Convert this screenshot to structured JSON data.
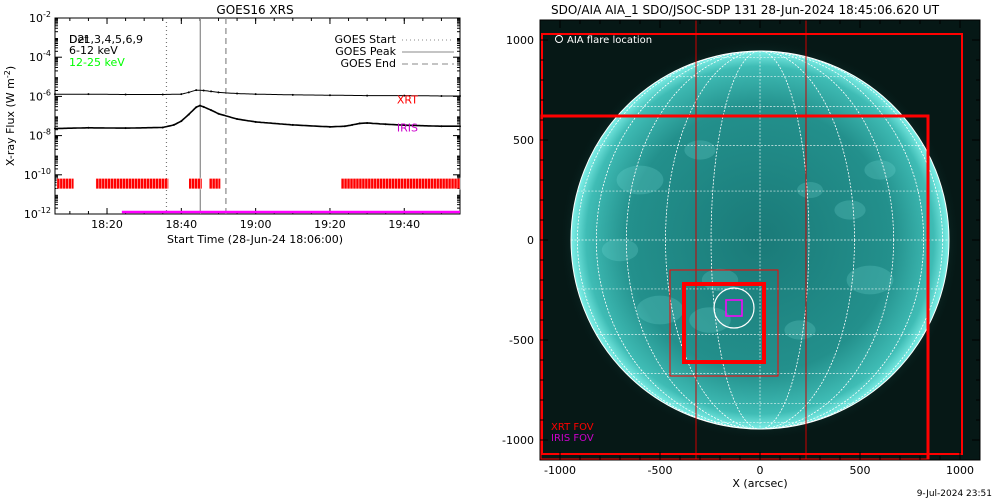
{
  "stamp": "9-Jul-2024 23:51",
  "chart_data": [
    {
      "type": "line",
      "title": "GOES16 XRS",
      "xlabel": "Start Time (28-Jun-24 18:06:00)",
      "ylabel": "X-ray Flux (W m",
      "ylabel_sup": "-2",
      "ylabel_close": ")",
      "y_log_scale": true,
      "xlim_min": [
        6,
        115
      ],
      "ylim_exp": [
        -12,
        -2
      ],
      "x_ticks": [
        {
          "min": 20,
          "label": "18:20"
        },
        {
          "min": 40,
          "label": "18:40"
        },
        {
          "min": 60,
          "label": "19:00"
        },
        {
          "min": 80,
          "label": "19:20"
        },
        {
          "min": 100,
          "label": "19:40"
        }
      ],
      "y_ticks": [
        {
          "exp": -12,
          "base": "10",
          "sup": "-12"
        },
        {
          "exp": -10,
          "base": "10",
          "sup": "-10"
        },
        {
          "exp": -8,
          "base": "10",
          "sup": "-8"
        },
        {
          "exp": -6,
          "base": "10",
          "sup": "-6"
        },
        {
          "exp": -4,
          "base": "10",
          "sup": "-4"
        },
        {
          "exp": -2,
          "base": "10",
          "sup": "-2"
        }
      ],
      "legend_left": {
        "detector_label": "Det",
        "detector_list": "1,3,4,5,6,9",
        "overlap_label": "D2",
        "entries": [
          {
            "label": "6-12 keV",
            "color": "#ff00ff"
          },
          {
            "label": "12-25 keV",
            "color": "#00ff00"
          }
        ]
      },
      "legend_right": [
        {
          "label": "GOES Start",
          "style": "dotted"
        },
        {
          "label": "GOES Peak",
          "style": "solid"
        },
        {
          "label": "GOES End",
          "style": "dashed"
        }
      ],
      "markers": {
        "start_min": 36,
        "peak_min": 45.1,
        "end_min": 52
      },
      "series": [
        {
          "name": "",
          "color": "#000000",
          "x": [
            6,
            15,
            25,
            35,
            40,
            42,
            44,
            46,
            48,
            50,
            55,
            60,
            70,
            80,
            90,
            100,
            110,
            115
          ],
          "y": [
            1.3e-06,
            1.3e-06,
            1.25e-06,
            1.25e-06,
            1.3e-06,
            1.6e-06,
            2.1e-06,
            2e-06,
            1.8e-06,
            1.6e-06,
            1.4e-06,
            1.3e-06,
            1.2e-06,
            1.15e-06,
            1.1e-06,
            1.1e-06,
            1.05e-06,
            1.05e-06
          ]
        },
        {
          "name": "",
          "color": "#000000",
          "x": [
            6,
            15,
            25,
            35,
            38,
            40,
            42,
            44,
            45,
            46,
            48,
            50,
            55,
            60,
            70,
            80,
            84,
            86,
            88,
            90,
            95,
            100,
            110,
            115
          ],
          "y": [
            2.3e-08,
            2.5e-08,
            2.4e-08,
            2.6e-08,
            3.5e-08,
            5.5e-08,
            1.2e-07,
            2.8e-07,
            3.4e-07,
            2.9e-07,
            2e-07,
            1.3e-07,
            7e-08,
            5e-08,
            3.5e-08,
            2.8e-08,
            3e-08,
            3.5e-08,
            4.2e-08,
            4.4e-08,
            3.8e-08,
            3.4e-08,
            3e-08,
            3e-08
          ]
        }
      ],
      "annotations": [
        {
          "label": "XRT",
          "color": "#ff0000",
          "min": 98,
          "exp": -6.35
        },
        {
          "label": "IRIS",
          "color": "#cc00cc",
          "min": 98,
          "exp": -7.8
        }
      ],
      "xrt_color": "#ff0000",
      "xrt_bar_level_exp": -10.45,
      "xrt_intervals_min": [
        [
          6.5,
          11
        ],
        [
          17,
          36.5
        ],
        [
          42,
          45.5
        ],
        [
          47.5,
          50.5
        ],
        [
          83,
          115
        ]
      ],
      "iris_color": "#ff00ff",
      "iris_level_exp": -11.9,
      "iris_interval_min": [
        24,
        115
      ]
    },
    {
      "type": "image",
      "title": "SDO/AIA AIA_1 SDO/JSOC-SDP 131 28-Jun-2024 18:45:06.620 UT",
      "xlabel": "X (arcsec)",
      "ylabel": "",
      "xlim": [
        -1100,
        1100
      ],
      "ylim": [
        -1100,
        1100
      ],
      "x_ticks": [
        -1000,
        -500,
        0,
        500,
        1000
      ],
      "y_ticks": [
        -1000,
        -500,
        0,
        500,
        1000
      ],
      "legend_top": "AIA flare location",
      "legend_bottom": [
        {
          "label": "XRT FOV",
          "color": "#ff0000"
        },
        {
          "label": "IRIS FOV",
          "color": "#cc00cc"
        }
      ],
      "sun_radius_arcsec": 945,
      "flare_xy": [
        -130,
        -340
      ],
      "xrt_fov_boxes": [
        {
          "x0": -1090,
          "x1": 1010,
          "y0": -1070,
          "y1": 1030,
          "width": 2
        },
        {
          "x0": -1100,
          "x1": 840,
          "y0": -1100,
          "y1": 620,
          "width": 3
        },
        {
          "x0": -450,
          "x1": 90,
          "y0": -680,
          "y1": -150,
          "width": 1
        },
        {
          "x0": -380,
          "x1": 20,
          "y0": -610,
          "y1": -220,
          "width": 4
        }
      ],
      "fov_lines_x": [
        -320,
        230
      ],
      "iris_fov_box": {
        "x0": -170,
        "x1": -90,
        "y0": -380,
        "y1": -300
      },
      "flare_circle_r": 100,
      "colors": {
        "background": "#061816",
        "disk_center": "#1a7a78",
        "disk_edge": "#5de0d8",
        "grid": "#ffffff"
      }
    }
  ]
}
